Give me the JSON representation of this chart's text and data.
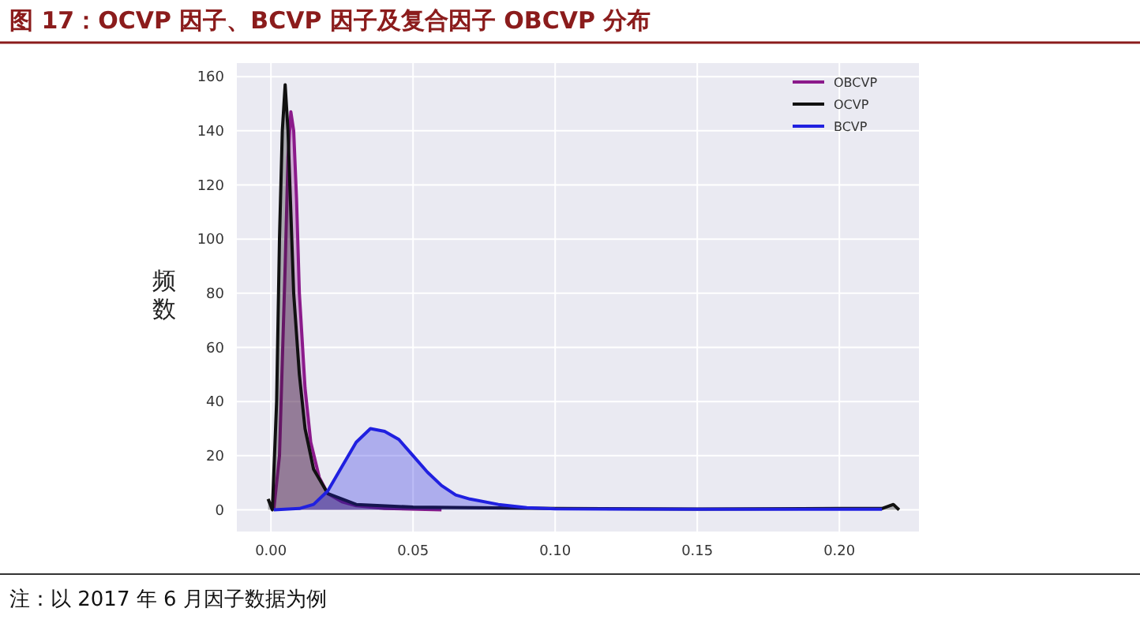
{
  "chart_data": {
    "type": "area",
    "title": "图 17：OCVP 因子、BCVP 因子及复合因子 OBCVP 分布",
    "ylabel": "频数",
    "annotations": [
      "注：以 2017 年 6 月因子数据为例"
    ],
    "xlim": [
      -0.012,
      0.228
    ],
    "ylim": [
      -8,
      165
    ],
    "xticks": [
      {
        "value": 0,
        "label": "0.00"
      },
      {
        "value": 0.05,
        "label": "0.05"
      },
      {
        "value": 0.1,
        "label": "0.10"
      },
      {
        "value": 0.15,
        "label": "0.15"
      },
      {
        "value": 0.2,
        "label": "0.20"
      }
    ],
    "yticks": [
      0,
      20,
      40,
      60,
      80,
      100,
      120,
      140,
      160
    ],
    "grid": true,
    "legend": "top right",
    "series": [
      {
        "name": "OBCVP",
        "color": "#8b1a8b",
        "x": [
          0.001,
          0.003,
          0.005,
          0.006,
          0.007,
          0.008,
          0.009,
          0.01,
          0.012,
          0.014,
          0.017,
          0.02,
          0.025,
          0.03,
          0.04,
          0.06
        ],
        "values": [
          0,
          20,
          90,
          130,
          147,
          140,
          115,
          80,
          45,
          25,
          12,
          6,
          3,
          1.5,
          0.5,
          0
        ]
      },
      {
        "name": "OCVP",
        "color": "#111111",
        "x": [
          -0.001,
          0.0005,
          0.002,
          0.003,
          0.004,
          0.005,
          0.006,
          0.007,
          0.008,
          0.01,
          0.012,
          0.015,
          0.02,
          0.03,
          0.05,
          0.1,
          0.15,
          0.2,
          0.215,
          0.219,
          0.221
        ],
        "values": [
          4,
          0,
          40,
          100,
          140,
          157,
          140,
          110,
          80,
          50,
          30,
          15,
          6,
          2,
          1,
          0.5,
          0.3,
          0.5,
          0.5,
          2,
          0
        ]
      },
      {
        "name": "BCVP",
        "color": "#2020e0",
        "x": [
          0.001,
          0.01,
          0.015,
          0.02,
          0.025,
          0.03,
          0.035,
          0.04,
          0.045,
          0.05,
          0.055,
          0.06,
          0.065,
          0.07,
          0.08,
          0.09,
          0.1,
          0.15,
          0.2,
          0.215
        ],
        "values": [
          0,
          0.5,
          2,
          7,
          16,
          25,
          30,
          29,
          26,
          20,
          14,
          9,
          5.5,
          4,
          2,
          0.8,
          0.4,
          0.2,
          0.2,
          0.2
        ]
      }
    ]
  }
}
